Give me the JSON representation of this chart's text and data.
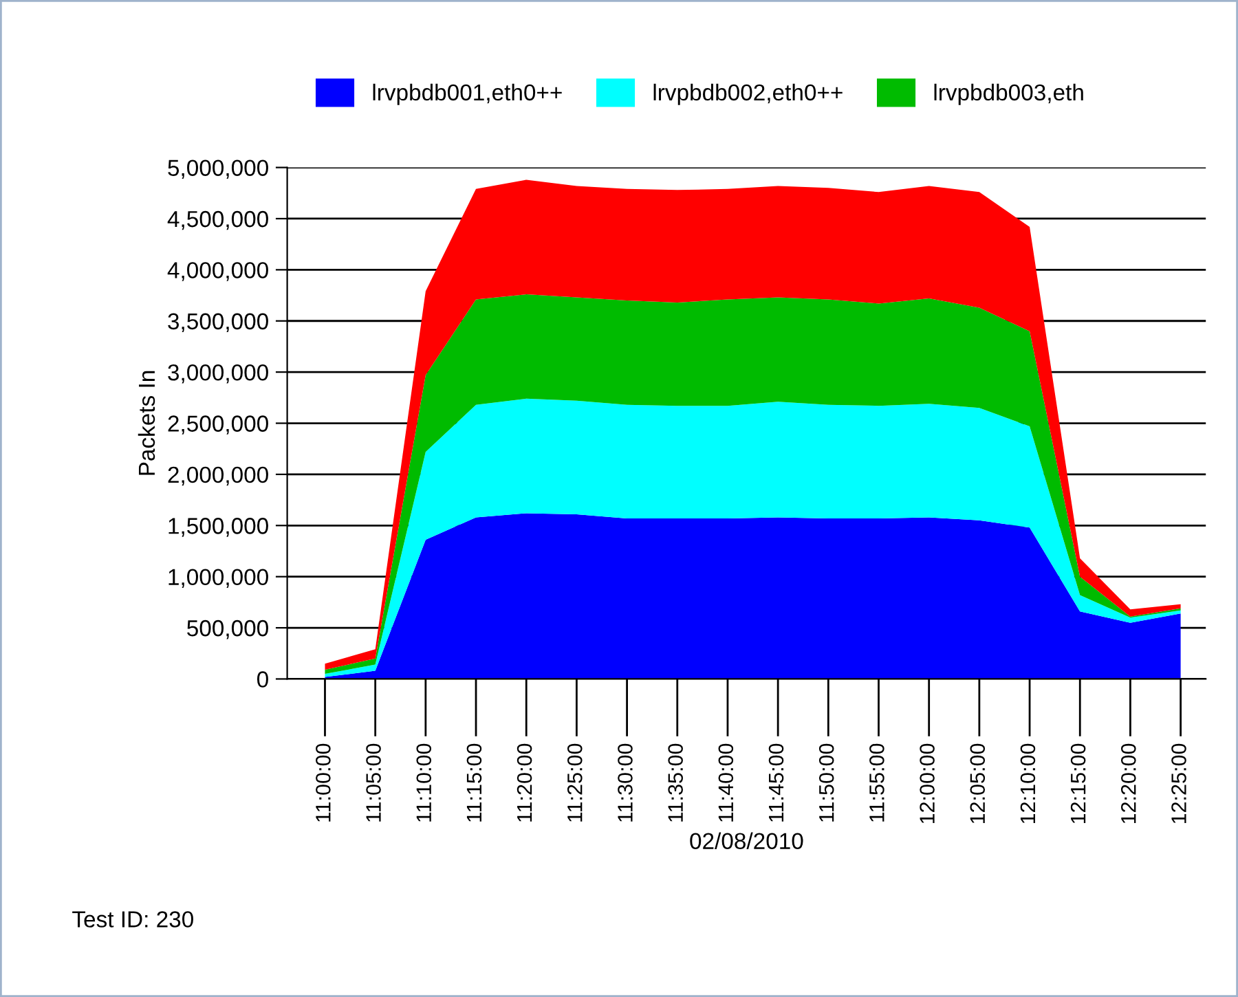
{
  "chart_data": {
    "type": "area",
    "stacked": true,
    "ylabel": "Packets In",
    "xlabel": "02/08/2010",
    "categories": [
      "11:00:00",
      "11:05:00",
      "11:10:00",
      "11:15:00",
      "11:20:00",
      "11:25:00",
      "11:30:00",
      "11:35:00",
      "11:40:00",
      "11:45:00",
      "11:50:00",
      "11:55:00",
      "12:00:00",
      "12:05:00",
      "12:10:00",
      "12:15:00",
      "12:20:00",
      "12:25:00"
    ],
    "series": [
      {
        "name": "lrvpbdb001,eth0++",
        "color": "#0000ff",
        "values": [
          20000,
          80000,
          1360000,
          1580000,
          1620000,
          1610000,
          1570000,
          1570000,
          1570000,
          1580000,
          1570000,
          1570000,
          1580000,
          1550000,
          1480000,
          660000,
          550000,
          640000
        ]
      },
      {
        "name": "lrvpbdb002,eth0++",
        "color": "#00ffff",
        "values": [
          30000,
          60000,
          860000,
          1100000,
          1120000,
          1110000,
          1110000,
          1100000,
          1100000,
          1130000,
          1110000,
          1100000,
          1110000,
          1100000,
          990000,
          160000,
          50000,
          30000
        ]
      },
      {
        "name": "lrvpbdb003,eth",
        "color": "#00bb00",
        "values": [
          40000,
          60000,
          750000,
          1030000,
          1020000,
          1010000,
          1020000,
          1010000,
          1040000,
          1020000,
          1030000,
          1000000,
          1030000,
          980000,
          930000,
          180000,
          10000,
          20000
        ]
      },
      {
        "color": "#ff0000",
        "values": [
          60000,
          90000,
          820000,
          1080000,
          1120000,
          1090000,
          1090000,
          1100000,
          1080000,
          1090000,
          1090000,
          1090000,
          1100000,
          1130000,
          1020000,
          180000,
          70000,
          40000
        ]
      }
    ],
    "ylim": [
      0,
      5000000
    ],
    "yticks": [
      0,
      {
        "value": 500000,
        "label": "500,000"
      },
      {
        "value": 1000000,
        "label": "1,000,000"
      },
      {
        "value": 1500000,
        "label": "1,500,000"
      },
      {
        "value": 2000000,
        "label": "2,000,000"
      },
      {
        "value": 2500000,
        "label": "2,500,000"
      },
      {
        "value": 3000000,
        "label": "3,000,000"
      },
      {
        "value": 3500000,
        "label": "3,500,000"
      },
      {
        "value": 4000000,
        "label": "4,000,000"
      },
      {
        "value": 4500000,
        "label": "4,500,000"
      },
      {
        "value": 5000000,
        "label": "5,000,000"
      }
    ],
    "grid": "y",
    "legend": "top",
    "annotations": [
      "Test ID: 230"
    ]
  }
}
